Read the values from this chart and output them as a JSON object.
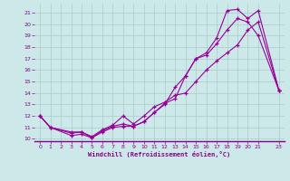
{
  "xlabel": "Windchill (Refroidissement éolien,°C)",
  "bg_color": "#cce8e8",
  "line_color": "#990099",
  "grid_color": "#aacccc",
  "xlim": [
    -0.5,
    23.5
  ],
  "ylim": [
    9.8,
    21.8
  ],
  "xticks": [
    0,
    1,
    2,
    3,
    4,
    5,
    6,
    7,
    8,
    9,
    10,
    11,
    12,
    13,
    14,
    15,
    16,
    17,
    18,
    19,
    20,
    21,
    23
  ],
  "yticks": [
    10,
    11,
    12,
    13,
    14,
    15,
    16,
    17,
    18,
    19,
    20,
    21
  ],
  "line1_x": [
    0,
    1,
    3,
    4,
    5,
    6,
    7,
    8,
    9,
    10,
    11,
    12,
    13,
    14,
    15,
    16,
    17,
    18,
    19,
    20,
    21,
    23
  ],
  "line1_y": [
    12,
    11,
    10.6,
    10.6,
    10.1,
    10.7,
    11.1,
    11.3,
    11.1,
    11.5,
    12.3,
    13.1,
    13.5,
    15.5,
    17.0,
    17.5,
    18.8,
    21.2,
    21.3,
    20.5,
    21.2,
    14.2
  ],
  "line2_x": [
    0,
    1,
    3,
    4,
    5,
    6,
    7,
    8,
    9,
    10,
    11,
    12,
    13,
    14,
    15,
    16,
    17,
    18,
    19,
    20,
    21,
    23
  ],
  "line2_y": [
    12,
    11,
    10.3,
    10.4,
    10.1,
    10.6,
    11.0,
    11.1,
    11.1,
    11.5,
    12.3,
    13.0,
    14.5,
    15.5,
    17.0,
    17.3,
    18.3,
    19.5,
    20.5,
    20.2,
    19.0,
    14.2
  ],
  "line3_x": [
    0,
    1,
    3,
    4,
    5,
    6,
    7,
    8,
    9,
    10,
    11,
    12,
    13,
    14,
    15,
    16,
    17,
    18,
    19,
    20,
    21,
    23
  ],
  "line3_y": [
    12,
    11,
    10.5,
    10.6,
    10.2,
    10.8,
    11.2,
    12.0,
    11.3,
    12.0,
    12.8,
    13.2,
    13.8,
    14.0,
    15.0,
    16.0,
    16.8,
    17.5,
    18.2,
    19.5,
    20.2,
    14.2
  ]
}
